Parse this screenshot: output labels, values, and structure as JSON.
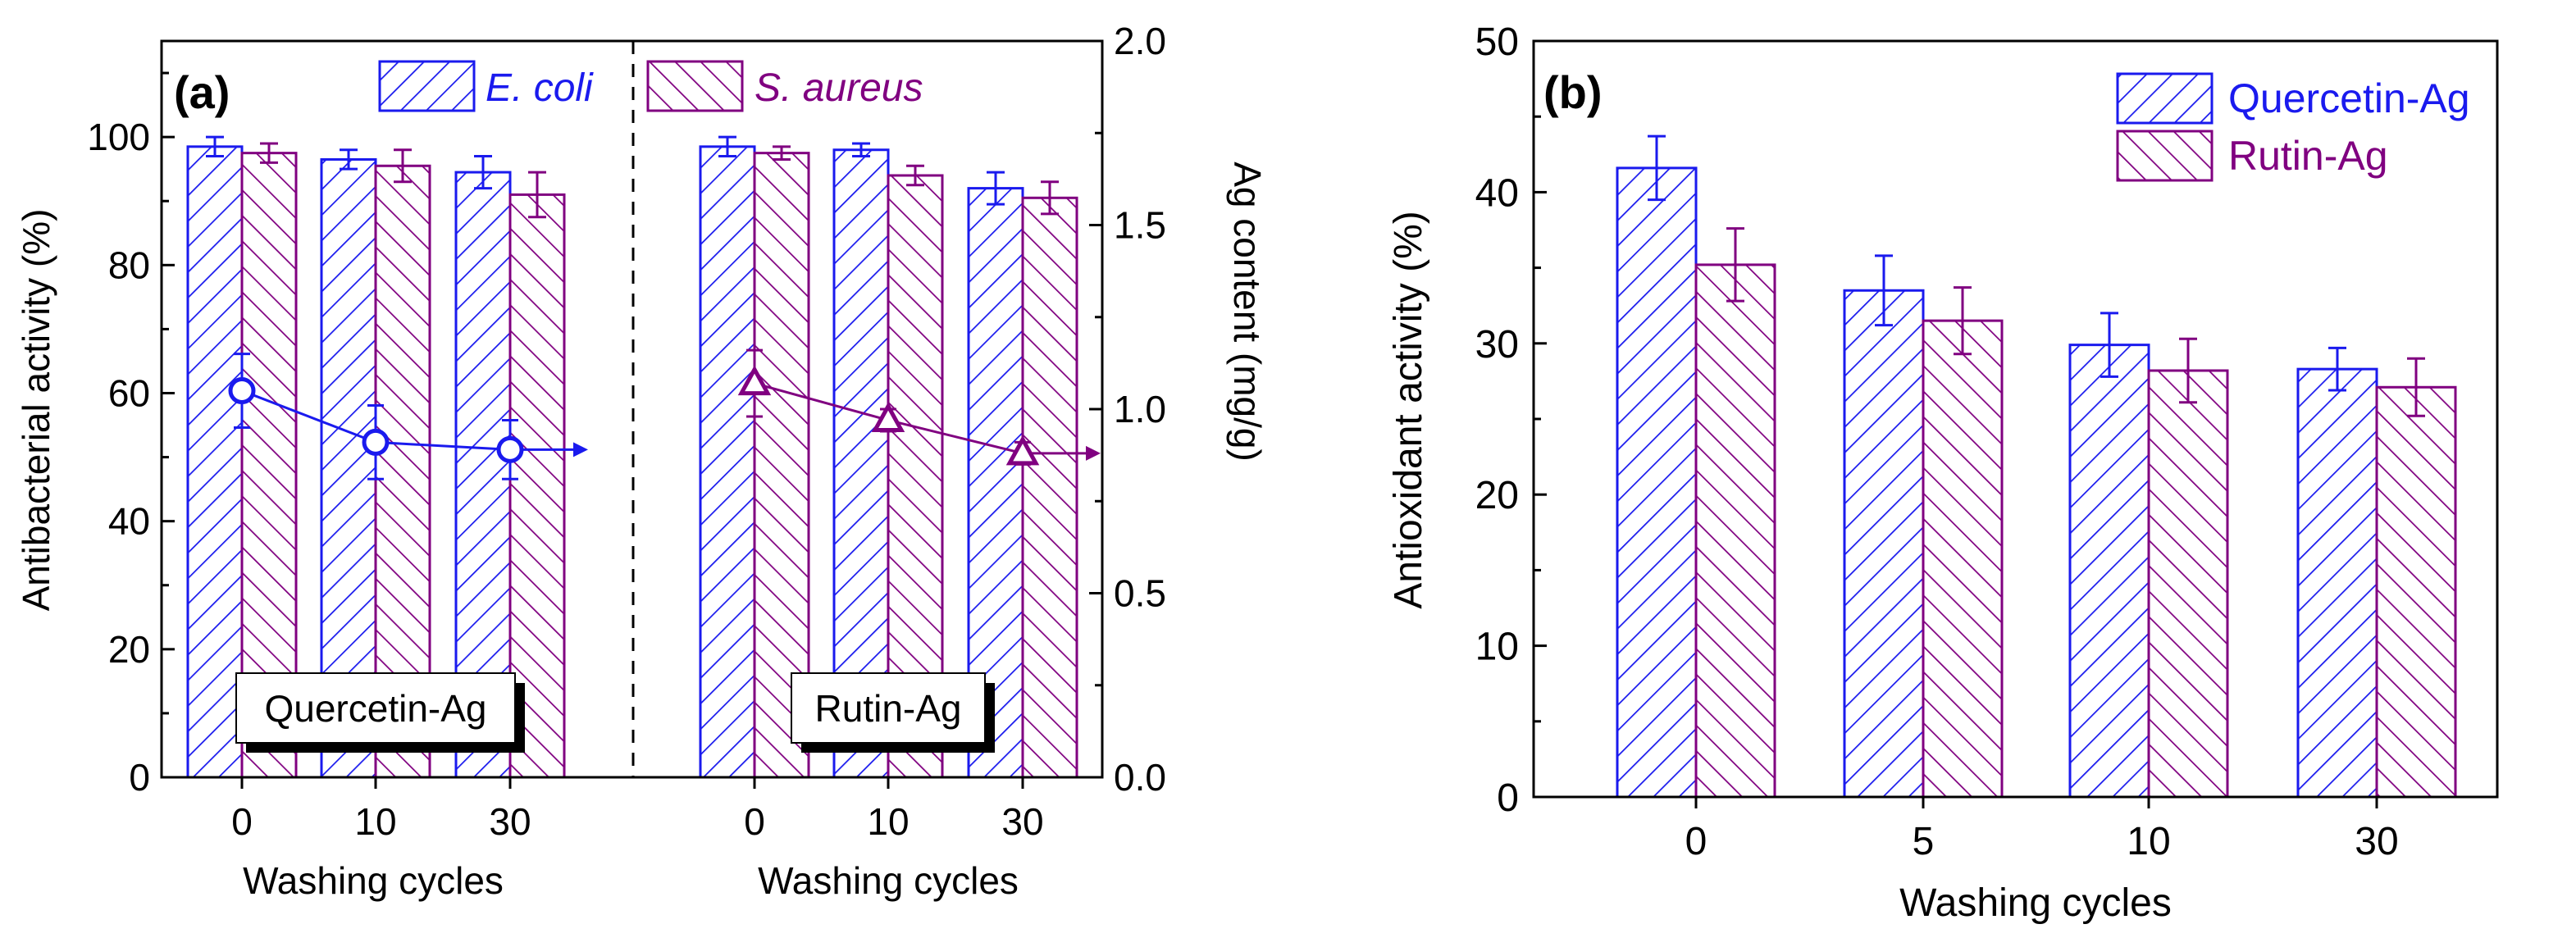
{
  "colors": {
    "blue": "#1a1aee",
    "purple": "#800080",
    "axis": "#000000",
    "label_box": "#ffffff",
    "label_shadow": "#000000"
  },
  "chart_data": [
    {
      "panel": "(a)",
      "type": "bar",
      "xlabel": "Washing cycles",
      "ylabel": "Antibacterial activity (%)",
      "y2label": "Ag content (mg/g)",
      "ylim": [
        0,
        115
      ],
      "y2lim": [
        0,
        2.0
      ],
      "yticks": [
        0,
        20,
        40,
        60,
        80,
        100
      ],
      "y2ticks": [
        0.0,
        0.5,
        1.0,
        1.5,
        2.0
      ],
      "legend": {
        "position": "top",
        "series": [
          "E. coli",
          "S. aureus"
        ]
      },
      "groups": [
        {
          "label": "Quercetin-Ag",
          "categories": [
            "0",
            "10",
            "30"
          ],
          "series": [
            {
              "name": "E. coli",
              "values": [
                98.5,
                96.5,
                94.5
              ],
              "errors": [
                1.5,
                1.5,
                2.5
              ]
            },
            {
              "name": "S. aureus",
              "values": [
                97.5,
                95.5,
                91.0
              ],
              "errors": [
                1.5,
                2.5,
                3.5
              ]
            }
          ],
          "ag_content": {
            "marker": "circle",
            "values": [
              1.05,
              0.91,
              0.89
            ],
            "errors": [
              0.1,
              0.1,
              0.08
            ]
          }
        },
        {
          "label": "Rutin-Ag",
          "categories": [
            "0",
            "10",
            "30"
          ],
          "series": [
            {
              "name": "E. coli",
              "values": [
                98.5,
                98.0,
                92.0
              ],
              "errors": [
                1.5,
                1.0,
                2.5
              ]
            },
            {
              "name": "S. aureus",
              "values": [
                97.5,
                94.0,
                90.5
              ],
              "errors": [
                1.0,
                1.5,
                2.5
              ]
            }
          ],
          "ag_content": {
            "marker": "triangle",
            "values": [
              1.07,
              0.97,
              0.88
            ],
            "errors": [
              0.09,
              0.03,
              0.03
            ]
          }
        }
      ]
    },
    {
      "panel": "(b)",
      "type": "bar",
      "xlabel": "Washing cycles",
      "ylabel": "Antioxidant activity (%)",
      "ylim": [
        0,
        50
      ],
      "yticks": [
        0,
        10,
        20,
        30,
        40,
        50
      ],
      "legend": {
        "position": "top-right",
        "series": [
          "Quercetin-Ag",
          "Rutin-Ag"
        ]
      },
      "categories": [
        "0",
        "5",
        "10",
        "30"
      ],
      "series": [
        {
          "name": "Quercetin-Ag",
          "values": [
            41.6,
            33.5,
            29.9,
            28.3
          ],
          "errors": [
            2.1,
            2.3,
            2.1,
            1.4
          ]
        },
        {
          "name": "Rutin-Ag",
          "values": [
            35.2,
            31.5,
            28.2,
            27.1
          ],
          "errors": [
            2.4,
            2.2,
            2.1,
            1.9
          ]
        }
      ]
    }
  ]
}
